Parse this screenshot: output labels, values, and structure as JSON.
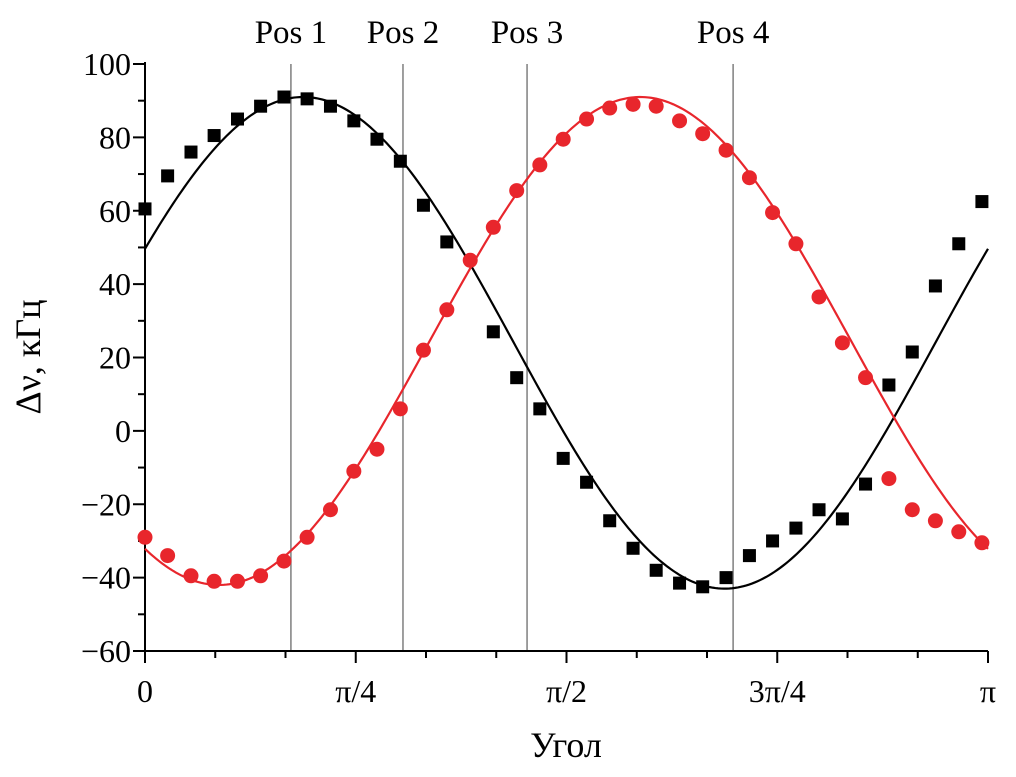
{
  "chart_data": {
    "type": "scatter",
    "xlabel": "Угол",
    "ylabel": "Δν, кГц",
    "xlim": [
      0,
      3.14159
    ],
    "ylim": [
      -60,
      100
    ],
    "x_ticks": [
      {
        "value": 0,
        "label": "0"
      },
      {
        "value": 0.7854,
        "label": "π/4"
      },
      {
        "value": 1.5708,
        "label": "π/2"
      },
      {
        "value": 2.3562,
        "label": "3π/4"
      },
      {
        "value": 3.14159,
        "label": "π"
      }
    ],
    "y_ticks": [
      -60,
      -40,
      -20,
      0,
      20,
      40,
      60,
      80,
      100
    ],
    "y_tick_labels": [
      "−60",
      "−40",
      "−20",
      "0",
      "20",
      "40",
      "60",
      "80",
      "100"
    ],
    "vlines": [
      {
        "x": 0.5438,
        "label": "Pos 1"
      },
      {
        "x": 0.9614,
        "label": "Pos 2"
      },
      {
        "x": 1.4238,
        "label": "Pos 3"
      },
      {
        "x": 2.1917,
        "label": "Pos 4"
      }
    ],
    "series": [
      {
        "color": "#000000",
        "marker": "square",
        "x": [
          0.0,
          0.0843,
          0.1714,
          0.2576,
          0.3447,
          0.4308,
          0.5179,
          0.6041,
          0.6912,
          0.7783,
          0.8645,
          0.9516,
          1.0377,
          1.1248,
          1.212,
          1.2981,
          1.3852,
          1.4714,
          1.5585,
          1.6456,
          1.7318,
          1.8189,
          1.905,
          1.9921,
          2.0783,
          2.1654,
          2.2525,
          2.3387,
          2.4258,
          2.5119,
          2.599,
          2.6852,
          2.7723,
          2.8594,
          2.9456,
          3.0327,
          3.1189
        ],
        "y": [
          60.5,
          69.5,
          76,
          80.5,
          85,
          88.5,
          91,
          90.5,
          88.5,
          84.5,
          79.5,
          73.5,
          61.5,
          51.5,
          null,
          27,
          14.5,
          6,
          -7.5,
          -14,
          -24.5,
          -32,
          -38,
          -41.5,
          -42.5,
          -40,
          -34,
          -30,
          -26.5,
          -21.5,
          -24,
          -14.5,
          12.5,
          21.5,
          39.5,
          51,
          62.5
        ]
      },
      {
        "color": "#e8262c",
        "marker": "circle",
        "x": [
          0.0,
          0.0843,
          0.1714,
          0.2576,
          0.3447,
          0.4308,
          0.5179,
          0.6041,
          0.6912,
          0.7783,
          0.8645,
          0.9516,
          1.0377,
          1.1248,
          1.212,
          1.2981,
          1.3852,
          1.4714,
          1.5585,
          1.6456,
          1.7318,
          1.8189,
          1.905,
          1.9921,
          2.0783,
          2.1654,
          2.2525,
          2.3387,
          2.4258,
          2.5119,
          2.599,
          2.6852,
          2.7723,
          2.8594,
          2.9456,
          3.0327,
          3.1189
        ],
        "y": [
          -29,
          -34,
          -39.5,
          -41,
          -41,
          -39.5,
          -35.5,
          -29,
          -21.5,
          -11,
          -5,
          6,
          22,
          33,
          46.5,
          55.5,
          65.5,
          72.5,
          79.5,
          85,
          88,
          89,
          88.5,
          84.5,
          81,
          76.5,
          69,
          59.5,
          51,
          36.5,
          24,
          14.5,
          -13,
          -21.5,
          -24.5,
          -27.5,
          -30.5
        ]
      }
    ],
    "fit_curves": [
      {
        "color": "#000000",
        "offset": 24,
        "amplitude": 67,
        "peak_x": 0.5892
      },
      {
        "color": "#e8262c",
        "offset": 24.5,
        "amplitude": 66.5,
        "peak_x": 1.8463
      }
    ]
  }
}
